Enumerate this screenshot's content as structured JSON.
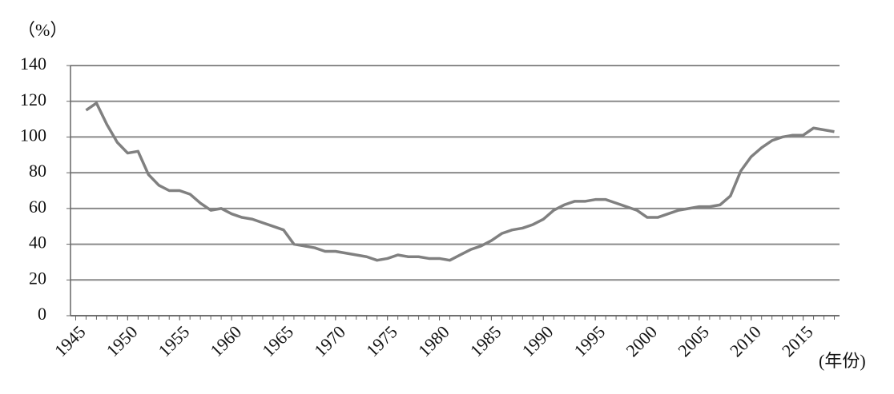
{
  "chart_data": {
    "type": "line",
    "y_unit": "（%）",
    "x_unit": "(年份)",
    "x": [
      1946,
      1947,
      1948,
      1949,
      1950,
      1951,
      1952,
      1953,
      1954,
      1955,
      1956,
      1957,
      1958,
      1959,
      1960,
      1961,
      1962,
      1963,
      1964,
      1965,
      1966,
      1967,
      1968,
      1969,
      1970,
      1971,
      1972,
      1973,
      1974,
      1975,
      1976,
      1977,
      1978,
      1979,
      1980,
      1981,
      1982,
      1983,
      1984,
      1985,
      1986,
      1987,
      1988,
      1989,
      1990,
      1991,
      1992,
      1993,
      1994,
      1995,
      1996,
      1997,
      1998,
      1999,
      2000,
      2001,
      2002,
      2003,
      2004,
      2005,
      2006,
      2007,
      2008,
      2009,
      2010,
      2011,
      2012,
      2013,
      2014,
      2015,
      2016,
      2017,
      2018
    ],
    "series": [
      {
        "color": "#808080",
        "values": [
          115,
          119,
          107,
          97,
          91,
          92,
          79,
          73,
          70,
          70,
          68,
          63,
          59,
          60,
          57,
          55,
          54,
          52,
          50,
          48,
          40,
          39,
          38,
          36,
          36,
          35,
          34,
          33,
          31,
          32,
          34,
          33,
          33,
          32,
          32,
          31,
          34,
          37,
          39,
          42,
          46,
          48,
          49,
          51,
          54,
          59,
          62,
          64,
          64,
          65,
          65,
          63,
          61,
          59,
          55,
          55,
          57,
          59,
          60,
          61,
          61,
          62,
          67,
          81,
          89,
          94,
          98,
          100,
          101,
          101,
          105,
          104,
          103
        ]
      }
    ],
    "xlim": [
      1944.5,
      2018.5
    ],
    "xticks": [
      1945,
      1950,
      1955,
      1960,
      1965,
      1970,
      1975,
      1980,
      1985,
      1990,
      1995,
      2000,
      2005,
      2010,
      2015
    ],
    "ylim": [
      0,
      140
    ],
    "yticks": [
      0,
      20,
      40,
      60,
      80,
      100,
      120,
      140
    ],
    "grid": true
  }
}
